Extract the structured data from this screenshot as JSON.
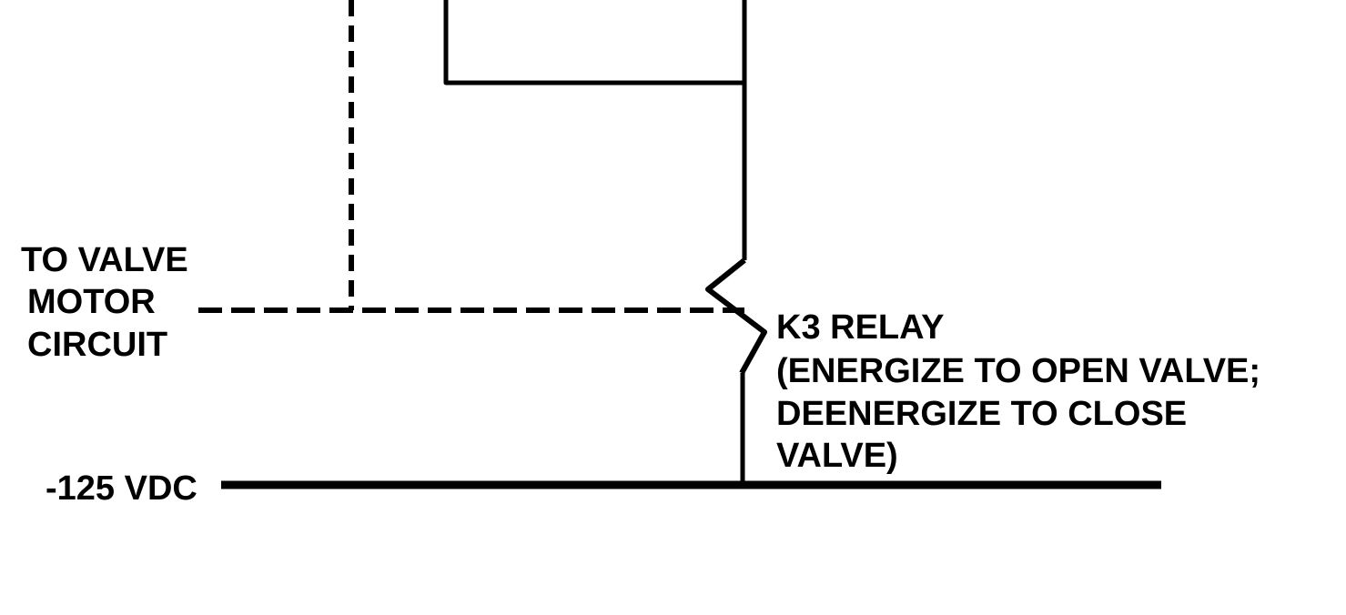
{
  "labels": {
    "valve_motor": [
      "TO VALVE",
      "MOTOR",
      "CIRCUIT"
    ],
    "relay": [
      "K3 RELAY",
      "(ENERGIZE TO OPEN VALVE;",
      "DEENERGIZE TO CLOSE",
      "VALVE)"
    ],
    "supply": "-125 VDC"
  },
  "colors": {
    "line": "#000000",
    "background": "#ffffff"
  }
}
